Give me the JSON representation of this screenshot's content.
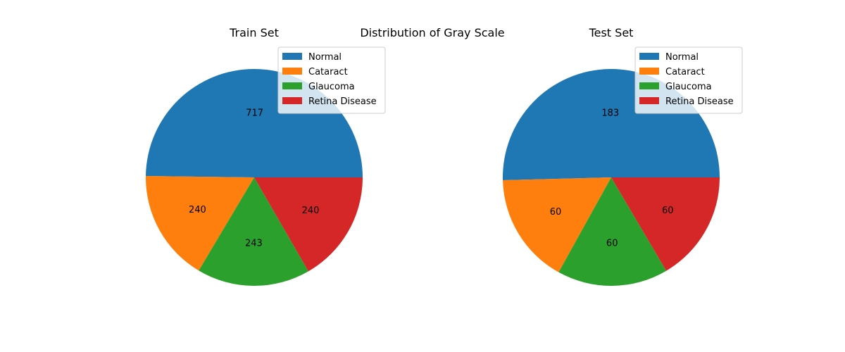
{
  "figure": {
    "title": "Distribution of Gray Scale"
  },
  "chart_data": [
    {
      "type": "pie",
      "title": "Train Set",
      "categories": [
        "Normal",
        "Cataract",
        "Glaucoma",
        "Retina Disease"
      ],
      "values": [
        717,
        240,
        243,
        240
      ],
      "colors": [
        "#1f77b4",
        "#ff7f0e",
        "#2ca02c",
        "#d62728"
      ],
      "legend_position": "upper-right",
      "labels_show": "absolute values"
    },
    {
      "type": "pie",
      "title": "Test Set",
      "categories": [
        "Normal",
        "Cataract",
        "Glaucoma",
        "Retina Disease"
      ],
      "values": [
        183,
        60,
        60,
        60
      ],
      "colors": [
        "#1f77b4",
        "#ff7f0e",
        "#2ca02c",
        "#d62728"
      ],
      "legend_position": "upper-right",
      "labels_show": "absolute values"
    }
  ]
}
